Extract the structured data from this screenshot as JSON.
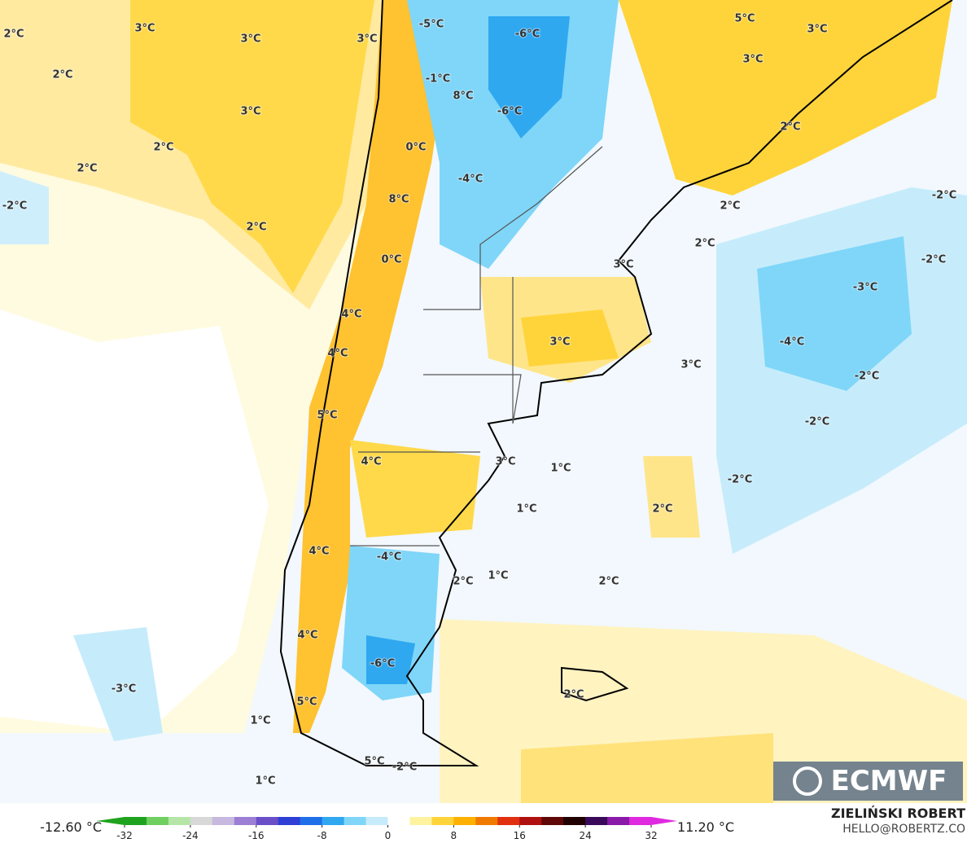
{
  "map": {
    "labels": [
      "2°C",
      "3°C",
      "3°C",
      "3°C",
      "2°C",
      "3°C",
      "2°C",
      "2°C",
      "-2°C",
      "2°C",
      "-5°C",
      "-6°C",
      "5°C",
      "3°C",
      "3°C",
      "-1°C",
      "8°C",
      "-6°C",
      "2°C",
      "0°C",
      "-4°C",
      "8°C",
      "-2°C",
      "2°C",
      "2°C",
      "3°C",
      "0°C",
      "-2°C",
      "-3°C",
      "4°C",
      "3°C",
      "-4°C",
      "4°C",
      "3°C",
      "-2°C",
      "5°C",
      "-2°C",
      "4°C",
      "3°C",
      "1°C",
      "-2°C",
      "1°C",
      "2°C",
      "4°C",
      "-4°C",
      "1°C",
      "2°C",
      "2°C",
      "4°C",
      "-6°C",
      "-3°C",
      "2°C",
      "5°C",
      "1°C",
      "5°C",
      "-2°C",
      "1°C"
    ],
    "logo": "ECMWF"
  },
  "colorbar": {
    "ticks": [
      -32,
      -24,
      -16,
      -8,
      0,
      8,
      16,
      24,
      32
    ],
    "colors": [
      "#1fa31f",
      "#6fcf5f",
      "#b5e6a8",
      "#d8d8d8",
      "#c7b8e0",
      "#9c7fd4",
      "#6a4fc9",
      "#2f3fd6",
      "#1f6fe8",
      "#2fa8f0",
      "#7fd6f8",
      "#c6ecfb",
      "#ffffff",
      "#fff3a0",
      "#ffd43a",
      "#ffb000",
      "#f07a00",
      "#e03010",
      "#b01010",
      "#600808",
      "#200000",
      "#3a0a5a",
      "#8a1aa8",
      "#e02ae0"
    ],
    "min_label": "-12.60 °C",
    "max_label": "11.20 °C"
  },
  "credit": {
    "author": "ZIELIŃSKI ROBERT",
    "email": "HELLO@ROBERTZ.CO"
  }
}
